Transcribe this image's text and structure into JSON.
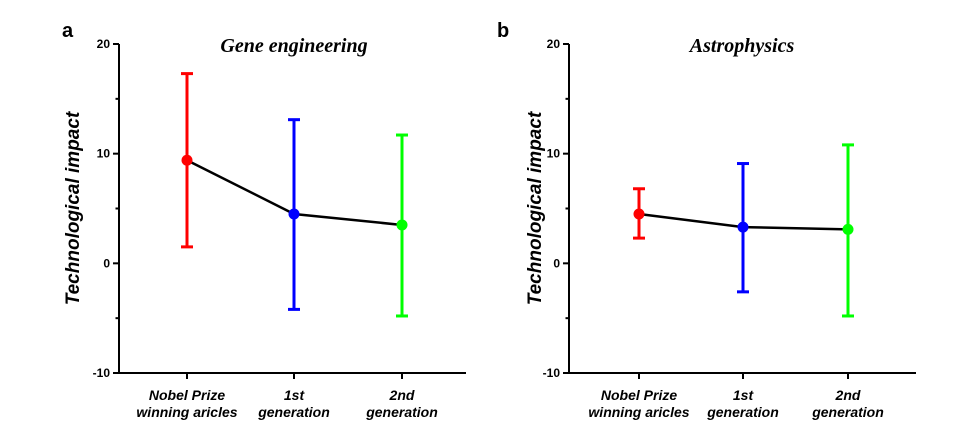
{
  "chart_data": [
    {
      "type": "line",
      "panel_label": "a",
      "title": "Gene engineering",
      "ylabel": "Technological impact",
      "ylim": [
        -10,
        20
      ],
      "yticks": [
        -10,
        0,
        10,
        20
      ],
      "categories": [
        [
          "Nobel Prize",
          "winning aricles"
        ],
        [
          "1st",
          "generation"
        ],
        [
          "2nd",
          "generation"
        ]
      ],
      "values": [
        9.4,
        4.5,
        3.5
      ],
      "error_low": [
        1.5,
        -4.2,
        -4.8
      ],
      "error_high": [
        17.3,
        13.1,
        11.7
      ],
      "colors": [
        "#ff0000",
        "#0000ff",
        "#00ff00"
      ]
    },
    {
      "type": "line",
      "panel_label": "b",
      "title": "Astrophysics",
      "ylabel": "Technological impact",
      "ylim": [
        -10,
        20
      ],
      "yticks": [
        -10,
        0,
        10,
        20
      ],
      "categories": [
        [
          "Nobel Prize",
          "winning aricles"
        ],
        [
          "1st",
          "generation"
        ],
        [
          "2nd",
          "generation"
        ]
      ],
      "values": [
        4.5,
        3.3,
        3.1
      ],
      "error_low": [
        2.3,
        -2.6,
        -4.8
      ],
      "error_high": [
        6.8,
        9.1,
        10.8
      ],
      "colors": [
        "#ff0000",
        "#0000ff",
        "#00ff00"
      ]
    }
  ]
}
